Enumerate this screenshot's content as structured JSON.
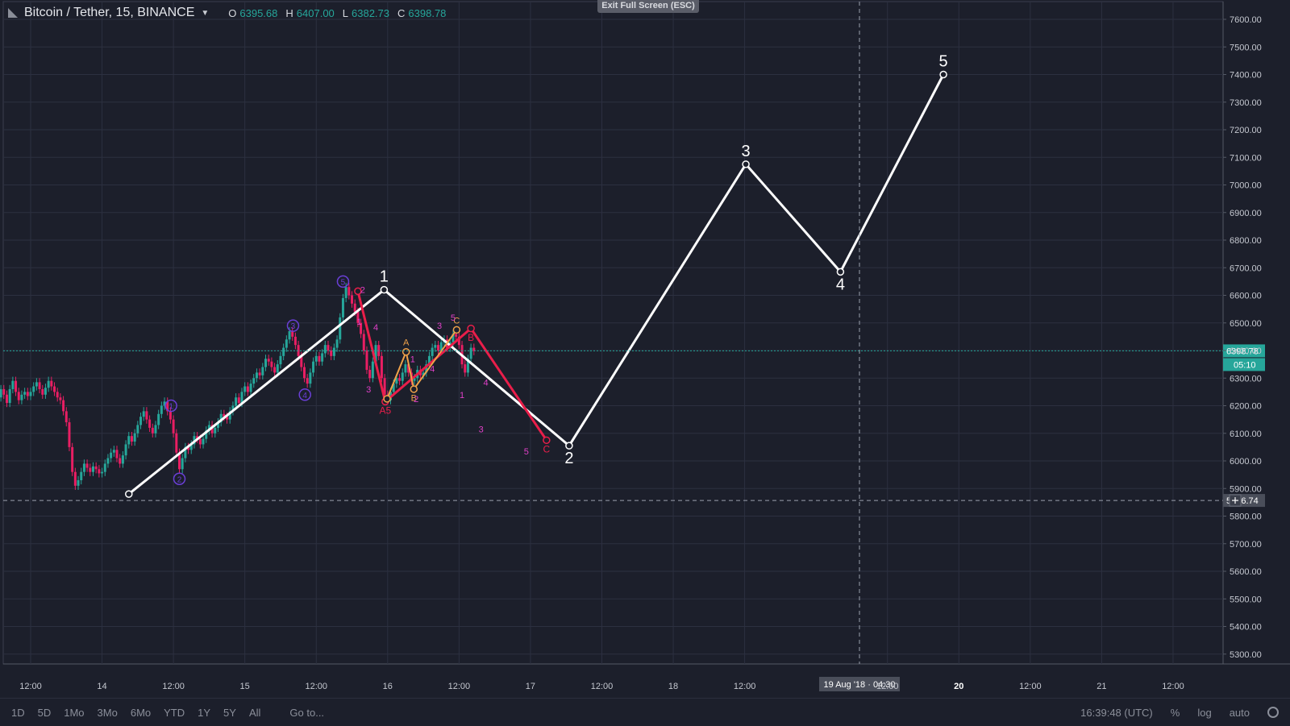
{
  "header": {
    "symbol": "Bitcoin / Tether, 15, BINANCE",
    "o_label": "O",
    "o_value": "6395.68",
    "h_label": "H",
    "h_value": "6407.00",
    "l_label": "L",
    "l_value": "6382.73",
    "c_label": "C",
    "c_value": "6398.78"
  },
  "exit_fullscreen": "Exit Full Screen (ESC)",
  "bottom": {
    "ranges": [
      "1D",
      "5D",
      "1Mo",
      "3Mo",
      "6Mo",
      "YTD",
      "1Y",
      "5Y",
      "All"
    ],
    "goto": "Go to...",
    "time": "16:39:48 (UTC)",
    "percent": "%",
    "log": "log",
    "auto": "auto"
  },
  "chart_data": {
    "type": "line",
    "y_ticks": [
      "7600.00",
      "7500.00",
      "7400.00",
      "7300.00",
      "7200.00",
      "7100.00",
      "7000.00",
      "6900.00",
      "6800.00",
      "6700.00",
      "6600.00",
      "6500.00",
      "6400.00",
      "6300.00",
      "6200.00",
      "6100.00",
      "6000.00",
      "5900.00",
      "5800.00",
      "5700.00",
      "5600.00",
      "5500.00",
      "5400.00",
      "5300.00"
    ],
    "ylim": [
      5250,
      7650
    ],
    "x_ticks": [
      {
        "label": "12:00",
        "t": 12
      },
      {
        "label": "14",
        "t": 24
      },
      {
        "label": "12:00",
        "t": 36
      },
      {
        "label": "15",
        "t": 48
      },
      {
        "label": "12:00",
        "t": 60
      },
      {
        "label": "16",
        "t": 72
      },
      {
        "label": "12:00",
        "t": 84
      },
      {
        "label": "17",
        "t": 96
      },
      {
        "label": "12:00",
        "t": 108
      },
      {
        "label": "18",
        "t": 120
      },
      {
        "label": "12:00",
        "t": 132
      },
      {
        "label": "12:00",
        "t": 156
      },
      {
        "label": "20",
        "t": 168
      },
      {
        "label": "12:00",
        "t": 180
      },
      {
        "label": "21",
        "t": 192
      },
      {
        "label": "12:00",
        "t": 204
      }
    ],
    "last_price": "6398.78",
    "countdown": "05:10",
    "crosshair_price": "5856.74",
    "crosshair_time": "19 Aug '18 · 04:30",
    "main_wave": {
      "color": "#ffffff",
      "points": [
        {
          "t": 28.5,
          "p": 5880,
          "label": ""
        },
        {
          "t": 71.4,
          "p": 6620,
          "label": "1"
        },
        {
          "t": 102.5,
          "p": 6055,
          "label": "2"
        },
        {
          "t": 132.2,
          "p": 7075,
          "label": "3"
        },
        {
          "t": 148.1,
          "p": 6685,
          "label": "4"
        },
        {
          "t": 165.4,
          "p": 7400,
          "label": "5"
        }
      ]
    },
    "correction_wave": {
      "color": "#e91e4a",
      "points": [
        {
          "t": 67.0,
          "p": 6615,
          "label": ""
        },
        {
          "t": 71.6,
          "p": 6215,
          "label": "A5"
        },
        {
          "t": 86.0,
          "p": 6480,
          "label": "B"
        },
        {
          "t": 98.7,
          "p": 6075,
          "label": "C"
        }
      ]
    },
    "abc_wave": {
      "color": "#f0a24a",
      "points": [
        {
          "t": 71.9,
          "p": 6225,
          "label": ""
        },
        {
          "t": 75.1,
          "p": 6395,
          "label": "A"
        },
        {
          "t": 76.4,
          "p": 6260,
          "label": "B"
        },
        {
          "t": 83.6,
          "p": 6475,
          "label": "C"
        }
      ]
    },
    "sub_labels": [
      {
        "t": 67.8,
        "p": 6620,
        "text": "2"
      },
      {
        "t": 67.2,
        "p": 6505,
        "text": "1"
      },
      {
        "t": 70.0,
        "p": 6485,
        "text": "4"
      },
      {
        "t": 68.8,
        "p": 6260,
        "text": "3"
      },
      {
        "t": 76.2,
        "p": 6370,
        "text": "1"
      },
      {
        "t": 76.8,
        "p": 6225,
        "text": "2"
      },
      {
        "t": 80.7,
        "p": 6490,
        "text": "3"
      },
      {
        "t": 79.5,
        "p": 6335,
        "text": "4"
      },
      {
        "t": 83.0,
        "p": 6520,
        "text": "5"
      },
      {
        "t": 84.5,
        "p": 6240,
        "text": "1"
      },
      {
        "t": 88.5,
        "p": 6285,
        "text": "4"
      },
      {
        "t": 87.7,
        "p": 6115,
        "text": "3"
      },
      {
        "t": 95.3,
        "p": 6035,
        "text": "5"
      }
    ],
    "circle_labels": [
      {
        "t": 35.6,
        "p": 6200,
        "text": "1"
      },
      {
        "t": 37.0,
        "p": 5935,
        "text": "2"
      },
      {
        "t": 56.1,
        "p": 6490,
        "text": "3"
      },
      {
        "t": 58.1,
        "p": 6240,
        "text": "4"
      },
      {
        "t": 64.5,
        "p": 6650,
        "text": "5"
      }
    ],
    "price_series": [
      [
        0,
        6440
      ],
      [
        0.5,
        6480
      ],
      [
        1,
        6490
      ],
      [
        1.5,
        6470
      ],
      [
        2,
        6480
      ],
      [
        2.5,
        6465
      ],
      [
        3,
        6450
      ],
      [
        3.5,
        6440
      ],
      [
        4,
        6400
      ],
      [
        4.5,
        6360
      ],
      [
        5,
        6310
      ],
      [
        5.5,
        6250
      ],
      [
        6,
        6190
      ],
      [
        6.5,
        6230
      ],
      [
        7,
        6260
      ],
      [
        7.5,
        6240
      ],
      [
        8,
        6210
      ],
      [
        8.5,
        6260
      ],
      [
        9,
        6290
      ],
      [
        9.5,
        6250
      ],
      [
        10,
        6220
      ],
      [
        10.5,
        6240
      ],
      [
        11,
        6250
      ],
      [
        11.5,
        6235
      ],
      [
        12,
        6250
      ],
      [
        12.5,
        6270
      ],
      [
        13,
        6285
      ],
      [
        13.5,
        6260
      ],
      [
        14,
        6240
      ],
      [
        14.5,
        6265
      ],
      [
        15,
        6290
      ],
      [
        15.5,
        6270
      ],
      [
        16,
        6250
      ],
      [
        16.5,
        6230
      ],
      [
        17,
        6220
      ],
      [
        17.5,
        6180
      ],
      [
        18,
        6140
      ],
      [
        18.5,
        6050
      ],
      [
        19,
        5960
      ],
      [
        19.5,
        5910
      ],
      [
        20,
        5930
      ],
      [
        20.5,
        5960
      ],
      [
        21,
        5990
      ],
      [
        21.5,
        5975
      ],
      [
        22,
        5960
      ],
      [
        22.5,
        5980
      ],
      [
        23,
        5970
      ],
      [
        23.5,
        5955
      ],
      [
        24,
        5960
      ],
      [
        24.5,
        5990
      ],
      [
        25,
        6010
      ],
      [
        25.5,
        6030
      ],
      [
        26,
        6040
      ],
      [
        26.5,
        6010
      ],
      [
        27,
        5990
      ],
      [
        27.5,
        6020
      ],
      [
        28,
        6060
      ],
      [
        28.5,
        6090
      ],
      [
        29,
        6070
      ],
      [
        29.5,
        6100
      ],
      [
        30,
        6130
      ],
      [
        30.5,
        6160
      ],
      [
        31,
        6180
      ],
      [
        31.5,
        6150
      ],
      [
        32,
        6120
      ],
      [
        32.5,
        6100
      ],
      [
        33,
        6130
      ],
      [
        33.5,
        6170
      ],
      [
        34,
        6200
      ],
      [
        34.5,
        6215
      ],
      [
        35,
        6180
      ],
      [
        35.5,
        6150
      ],
      [
        36,
        6100
      ],
      [
        36.5,
        6030
      ],
      [
        37,
        5970
      ],
      [
        37.5,
        6010
      ],
      [
        38,
        6050
      ],
      [
        38.5,
        6040
      ],
      [
        39,
        6060
      ],
      [
        39.5,
        6090
      ],
      [
        40,
        6080
      ],
      [
        40.5,
        6060
      ],
      [
        41,
        6080
      ],
      [
        41.5,
        6110
      ],
      [
        42,
        6130
      ],
      [
        42.5,
        6100
      ],
      [
        43,
        6120
      ],
      [
        43.5,
        6140
      ],
      [
        44,
        6170
      ],
      [
        44.5,
        6160
      ],
      [
        45,
        6150
      ],
      [
        45.5,
        6180
      ],
      [
        46,
        6200
      ],
      [
        46.5,
        6230
      ],
      [
        47,
        6210
      ],
      [
        47.5,
        6250
      ],
      [
        48,
        6270
      ],
      [
        48.5,
        6250
      ],
      [
        49,
        6280
      ],
      [
        49.5,
        6300
      ],
      [
        50,
        6320
      ],
      [
        50.5,
        6310
      ],
      [
        51,
        6340
      ],
      [
        51.5,
        6370
      ],
      [
        52,
        6360
      ],
      [
        52.5,
        6340
      ],
      [
        53,
        6320
      ],
      [
        53.5,
        6350
      ],
      [
        54,
        6380
      ],
      [
        54.5,
        6410
      ],
      [
        55,
        6440
      ],
      [
        55.5,
        6470
      ],
      [
        56,
        6450
      ],
      [
        56.5,
        6420
      ],
      [
        57,
        6380
      ],
      [
        57.5,
        6340
      ],
      [
        58,
        6300
      ],
      [
        58.5,
        6280
      ],
      [
        59,
        6320
      ],
      [
        59.5,
        6360
      ],
      [
        60,
        6380
      ],
      [
        60.5,
        6360
      ],
      [
        61,
        6390
      ],
      [
        61.5,
        6420
      ],
      [
        62,
        6400
      ],
      [
        62.5,
        6380
      ],
      [
        63,
        6410
      ],
      [
        63.5,
        6440
      ],
      [
        64,
        6520
      ],
      [
        64.5,
        6590
      ],
      [
        65,
        6630
      ],
      [
        65.5,
        6600
      ],
      [
        66,
        6570
      ],
      [
        66.5,
        6540
      ],
      [
        67,
        6500
      ],
      [
        67.5,
        6460
      ],
      [
        68,
        6400
      ],
      [
        68.5,
        6330
      ],
      [
        69,
        6300
      ],
      [
        69.5,
        6360
      ],
      [
        70,
        6420
      ],
      [
        70.5,
        6380
      ],
      [
        71,
        6300
      ],
      [
        71.5,
        6240
      ],
      [
        72,
        6220
      ],
      [
        72.5,
        6250
      ],
      [
        73,
        6280
      ],
      [
        73.5,
        6300
      ],
      [
        74,
        6290
      ],
      [
        74.5,
        6320
      ],
      [
        75,
        6350
      ],
      [
        75.5,
        6320
      ],
      [
        76,
        6290
      ],
      [
        76.5,
        6300
      ],
      [
        77,
        6330
      ],
      [
        77.5,
        6310
      ],
      [
        78,
        6320
      ],
      [
        78.5,
        6350
      ],
      [
        79,
        6380
      ],
      [
        79.5,
        6410
      ],
      [
        80,
        6420
      ],
      [
        80.5,
        6400
      ],
      [
        81,
        6430
      ],
      [
        81.5,
        6440
      ],
      [
        82,
        6410
      ],
      [
        82.5,
        6430
      ],
      [
        83,
        6460
      ],
      [
        83.5,
        6450
      ],
      [
        84,
        6420
      ],
      [
        84.5,
        6350
      ],
      [
        85,
        6320
      ],
      [
        85.5,
        6370
      ],
      [
        86,
        6410
      ],
      [
        86.5,
        6398
      ]
    ]
  }
}
